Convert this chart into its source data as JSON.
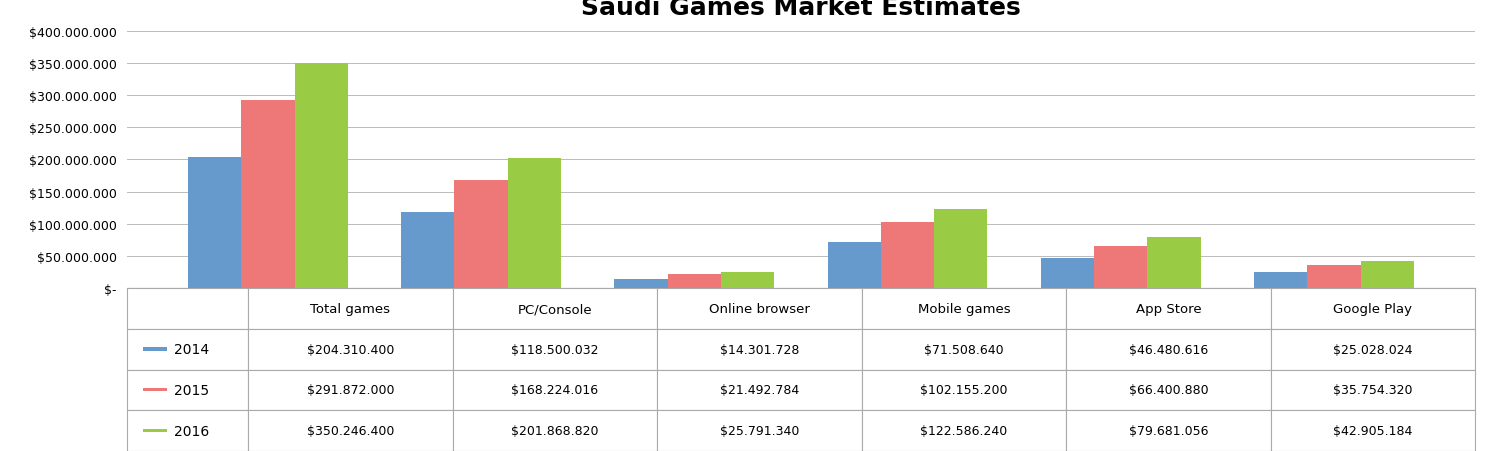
{
  "title": "Saudi Games Market Estimates",
  "categories": [
    "Total games",
    "PC/Console",
    "Online browser",
    "Mobile games",
    "App Store",
    "Google Play"
  ],
  "years": [
    "2014",
    "2015",
    "2016"
  ],
  "colors": [
    "#6699CC",
    "#EE7777",
    "#99CC44"
  ],
  "values": {
    "2014": [
      204310400,
      118500032,
      14301728,
      71508640,
      46480616,
      25028024
    ],
    "2015": [
      291872000,
      168224016,
      21492784,
      102155200,
      66400880,
      35754320
    ],
    "2016": [
      350246400,
      201868820,
      25791340,
      122586240,
      79681056,
      42905184
    ]
  },
  "table_labels": {
    "2014": [
      "$204.310.400",
      "$118.500.032",
      "$14.301.728",
      "$71.508.640",
      "$46.480.616",
      "$25.028.024"
    ],
    "2015": [
      "$291.872.000",
      "$168.224.016",
      "$21.492.784",
      "$102.155.200",
      "$66.400.880",
      "$35.754.320"
    ],
    "2016": [
      "$350.246.400",
      "$201.868.820",
      "$25.791.340",
      "$122.586.240",
      "$79.681.056",
      "$42.905.184"
    ]
  },
  "ylim": [
    0,
    400000000
  ],
  "yticks": [
    0,
    50000000,
    100000000,
    150000000,
    200000000,
    250000000,
    300000000,
    350000000,
    400000000
  ],
  "ytick_labels": [
    "$-",
    "$50.000.000",
    "$100.000.000",
    "$150.000.000",
    "$200.000.000",
    "$250.000.000",
    "$300.000.000",
    "$350.000.000",
    "$400.000.000"
  ],
  "background_color": "#FFFFFF",
  "grid_color": "#BBBBBB",
  "title_fontsize": 18,
  "bar_width": 0.25,
  "figsize": [
    14.9,
    4.52
  ],
  "dpi": 100
}
